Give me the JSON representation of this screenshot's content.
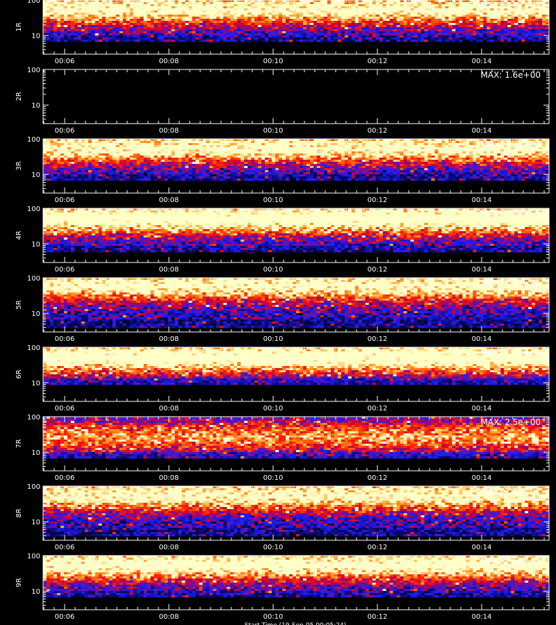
{
  "chart_data": [
    {
      "type": "heatmap",
      "ylabel": "1R",
      "max_label": "MAX: 1.5e+01",
      "y_scale": "log",
      "ylim": [
        3,
        100
      ],
      "y_ticks": [
        "10",
        "100"
      ],
      "x_ticks": [
        "00:06",
        "00:08",
        "00:10",
        "00:12",
        "00:14"
      ],
      "band_center": 60,
      "band_intensity": 0.85,
      "floor": 8
    },
    {
      "type": "heatmap",
      "ylabel": "2R",
      "max_label": "MAX: 1.6e+00",
      "y_scale": "log",
      "ylim": [
        3,
        100
      ],
      "y_ticks": [
        "10",
        "100"
      ],
      "x_ticks": [
        "00:06",
        "00:08",
        "00:10",
        "00:12",
        "00:14"
      ],
      "band_center": 60,
      "band_intensity": 0,
      "floor": 8
    },
    {
      "type": "heatmap",
      "ylabel": "3R",
      "max_label": "MAX: 1.3e+01",
      "y_scale": "log",
      "ylim": [
        3,
        100
      ],
      "y_ticks": [
        "10",
        "100"
      ],
      "x_ticks": [
        "00:06",
        "00:08",
        "00:10",
        "00:12",
        "00:14"
      ],
      "band_center": 60,
      "band_intensity": 0.85,
      "floor": 8
    },
    {
      "type": "heatmap",
      "ylabel": "4R",
      "max_label": "MAX: 2.2e+01",
      "y_scale": "log",
      "ylim": [
        3,
        100
      ],
      "y_ticks": [
        "10",
        "100"
      ],
      "x_ticks": [
        "00:06",
        "00:08",
        "00:10",
        "00:12",
        "00:14"
      ],
      "band_center": 55,
      "band_intensity": 0.95,
      "floor": 7
    },
    {
      "type": "heatmap",
      "ylabel": "5R",
      "max_label": "MAX: 1.7e+01",
      "y_scale": "log",
      "ylim": [
        3,
        100
      ],
      "y_ticks": [
        "10",
        "100"
      ],
      "x_ticks": [
        "00:06",
        "00:08",
        "00:10",
        "00:12",
        "00:14"
      ],
      "band_center": 65,
      "band_intensity": 0.85,
      "floor": 5
    },
    {
      "type": "heatmap",
      "ylabel": "6R",
      "max_label": "MAX: 2.3e+01",
      "y_scale": "log",
      "ylim": [
        3,
        100
      ],
      "y_ticks": [
        "10",
        "100"
      ],
      "x_ticks": [
        "00:06",
        "00:08",
        "00:10",
        "00:12",
        "00:14"
      ],
      "band_center": 55,
      "band_intensity": 0.95,
      "floor": 10
    },
    {
      "type": "heatmap",
      "ylabel": "7R",
      "max_label": "MAX: 2.5e+00",
      "y_scale": "log",
      "ylim": [
        3,
        100
      ],
      "y_ticks": [
        "10",
        "100"
      ],
      "x_ticks": [
        "00:06",
        "00:08",
        "00:10",
        "00:12",
        "00:14"
      ],
      "band_center": 30,
      "band_intensity": 0.6,
      "floor": 8
    },
    {
      "type": "heatmap",
      "ylabel": "8R",
      "max_label": "MAX: 2.6e+01",
      "y_scale": "log",
      "ylim": [
        3,
        100
      ],
      "y_ticks": [
        "10",
        "100"
      ],
      "x_ticks": [
        "00:06",
        "00:08",
        "00:10",
        "00:12",
        "00:14"
      ],
      "band_center": 60,
      "band_intensity": 0.85,
      "floor": 5
    },
    {
      "type": "heatmap",
      "ylabel": "9R",
      "max_label": "MAX: 2.5e+01",
      "y_scale": "log",
      "ylim": [
        3,
        100
      ],
      "y_ticks": [
        "10",
        "100"
      ],
      "x_ticks": [
        "00:06",
        "00:08",
        "00:10",
        "00:12",
        "00:14"
      ],
      "band_center": 60,
      "band_intensity": 0.9,
      "floor": 8
    }
  ],
  "footer": "Start Time (19-Sep-05 00:05:24)",
  "colors": {
    "background": "#000000",
    "axis": "#ffffff",
    "colormap": [
      "#000000",
      "#0000ff",
      "#ff0000",
      "#ff8000",
      "#ffffc0"
    ]
  }
}
